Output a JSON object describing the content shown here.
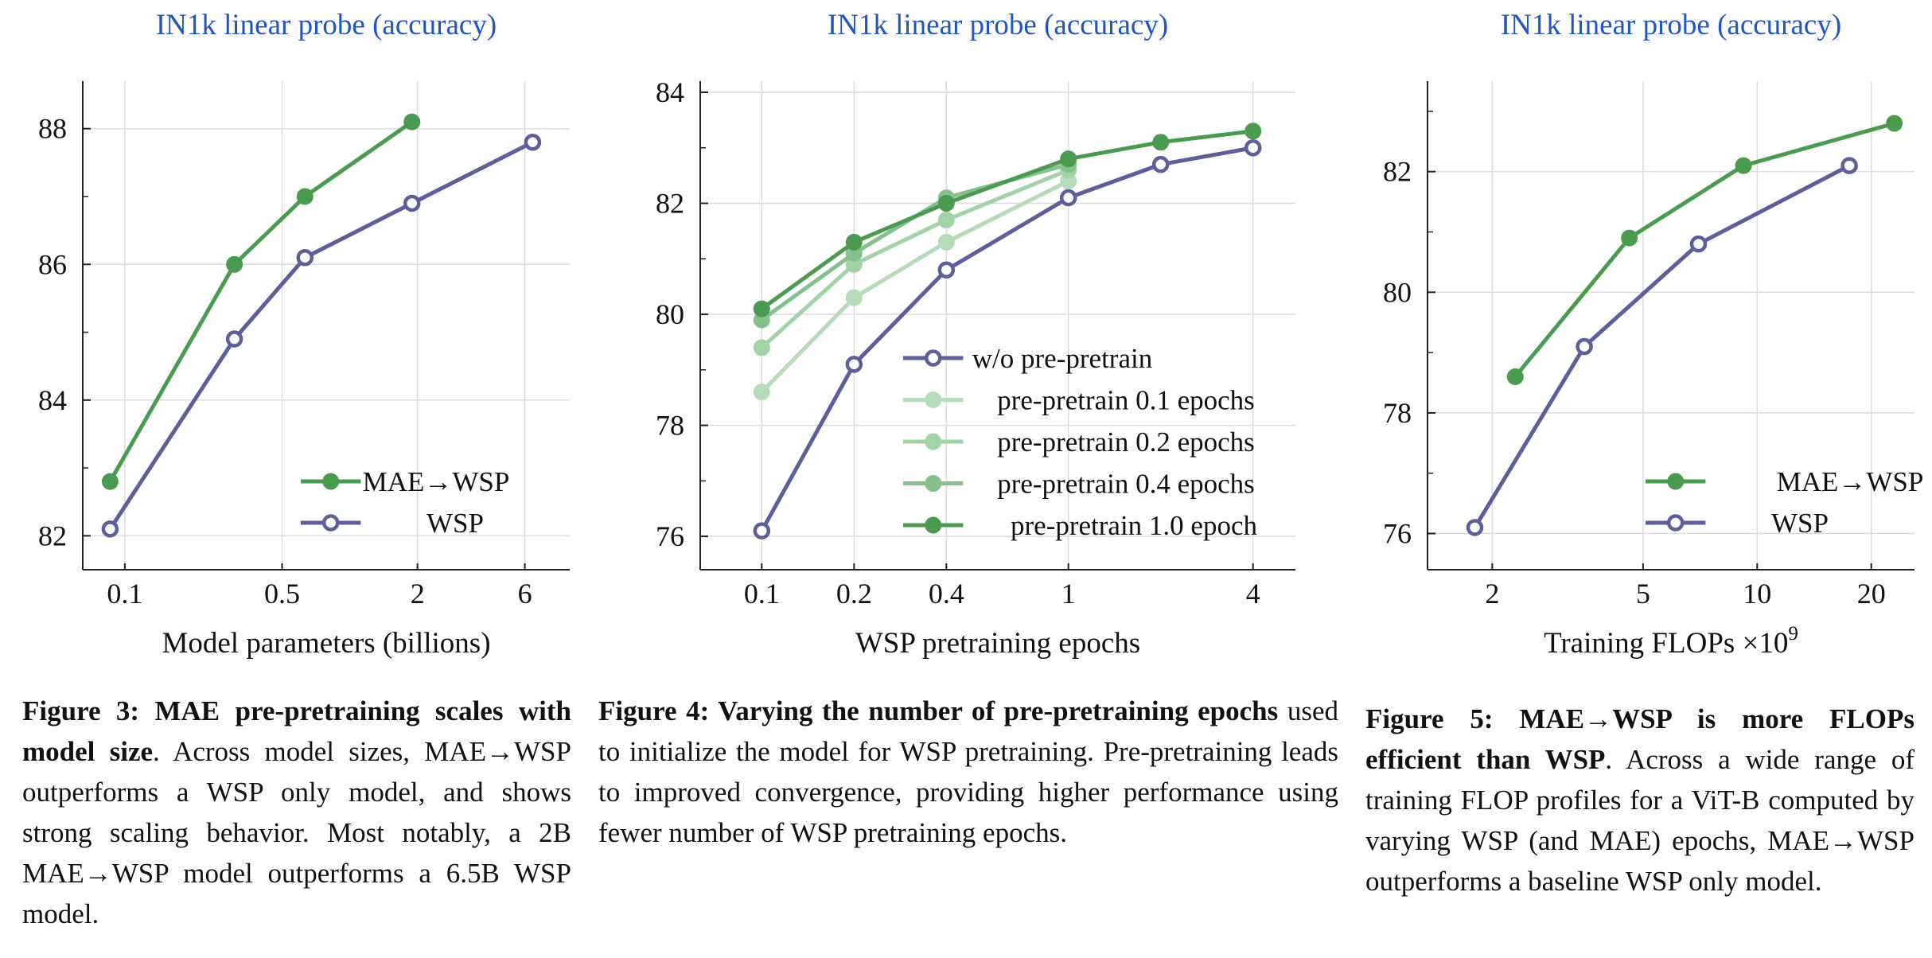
{
  "chart_data": [
    {
      "type": "line",
      "title": "IN1k linear probe (accuracy)",
      "xlabel": "Model parameters (billions)",
      "ylabel": "",
      "xscale": "log",
      "xlim": [
        0.065,
        9.5
      ],
      "ylim": [
        81.5,
        88.7
      ],
      "xticks": [
        0.1,
        0.5,
        2,
        6
      ],
      "xtick_labels": [
        "0.1",
        "0.5",
        "2",
        "6"
      ],
      "yticks": [
        82,
        84,
        86,
        88
      ],
      "ytick_labels": [
        "82",
        "84",
        "86",
        "88"
      ],
      "grid": true,
      "legend_position": "bottom-right",
      "series": [
        {
          "name": "MAE→WSP",
          "color": "#4a9a50",
          "marker": "filled",
          "x": [
            0.086,
            0.307,
            0.632,
            1.89
          ],
          "y": [
            82.8,
            86.0,
            87.0,
            88.1
          ]
        },
        {
          "name": "WSP",
          "color": "#5e5e9a",
          "marker": "open",
          "x": [
            0.086,
            0.307,
            0.632,
            1.89,
            6.5
          ],
          "y": [
            82.1,
            84.9,
            86.1,
            86.9,
            87.8
          ]
        }
      ]
    },
    {
      "type": "line",
      "title": "IN1k linear probe (accuracy)",
      "xlabel": "WSP pretraining epochs",
      "ylabel": "",
      "xscale": "log",
      "xlim": [
        0.063,
        5.5
      ],
      "ylim": [
        75.4,
        84.2
      ],
      "xticks": [
        0.1,
        0.2,
        0.4,
        1,
        4
      ],
      "xtick_labels": [
        "0.1",
        "0.2",
        "0.4",
        "1",
        "4"
      ],
      "yticks": [
        76,
        78,
        80,
        82,
        84
      ],
      "ytick_labels": [
        "76",
        "78",
        "80",
        "82",
        "84"
      ],
      "grid": true,
      "legend_position": "bottom-right",
      "series": [
        {
          "name": "w/o pre-pretrain",
          "color": "#5e5e9a",
          "marker": "open",
          "x": [
            0.1,
            0.2,
            0.4,
            1,
            2,
            4
          ],
          "y": [
            76.1,
            79.1,
            80.8,
            82.1,
            82.7,
            83.0
          ]
        },
        {
          "name": "pre-pretrain 0.1 epochs",
          "color": "#b5dbb8",
          "marker": "filled",
          "x": [
            0.1,
            0.2,
            0.4,
            1
          ],
          "y": [
            78.6,
            80.3,
            81.3,
            82.4
          ]
        },
        {
          "name": "pre-pretrain 0.2 epochs",
          "color": "#a2d3a6",
          "marker": "filled",
          "x": [
            0.1,
            0.2,
            0.4,
            1
          ],
          "y": [
            79.4,
            80.9,
            81.7,
            82.6
          ]
        },
        {
          "name": "pre-pretrain 0.4 epochs",
          "color": "#86c08c",
          "marker": "filled",
          "x": [
            0.1,
            0.2,
            0.4,
            1
          ],
          "y": [
            79.9,
            81.1,
            82.1,
            82.7
          ]
        },
        {
          "name": "pre-pretrain 1.0 epoch",
          "color": "#4a9a50",
          "marker": "filled",
          "x": [
            0.1,
            0.2,
            0.4,
            1,
            2,
            4
          ],
          "y": [
            80.1,
            81.3,
            82.0,
            82.8,
            83.1,
            83.3
          ]
        }
      ]
    },
    {
      "type": "line",
      "title": "IN1k linear probe (accuracy)",
      "xlabel": "Training FLOPs ×10",
      "xlabel_superscript": "9",
      "ylabel": "",
      "xscale": "log",
      "xlim": [
        1.35,
        26
      ],
      "ylim": [
        75.4,
        83.5
      ],
      "xticks": [
        2,
        5,
        10,
        20
      ],
      "xtick_labels": [
        "2",
        "5",
        "10",
        "20"
      ],
      "yticks": [
        76,
        78,
        80,
        82
      ],
      "ytick_labels": [
        "76",
        "78",
        "80",
        "82"
      ],
      "grid": true,
      "legend_position": "bottom-right",
      "series": [
        {
          "name": "MAE→WSP",
          "color": "#4a9a50",
          "marker": "filled",
          "x": [
            2.3,
            4.6,
            9.2,
            23
          ],
          "y": [
            78.6,
            80.9,
            82.1,
            82.8
          ]
        },
        {
          "name": "WSP",
          "color": "#5e5e9a",
          "marker": "open",
          "x": [
            1.8,
            3.5,
            7.0,
            17.5
          ],
          "y": [
            76.1,
            79.1,
            80.8,
            82.1
          ]
        }
      ]
    }
  ],
  "colors": {
    "title": "#2255c4",
    "axis": "#222222",
    "grid": "#dcdcdc"
  },
  "captions": {
    "fig3": {
      "bold": "Figure 3: MAE pre-pretraining scales with model size",
      "text": ". Across model sizes, MAE→WSP outperforms a WSP only model, and shows strong scaling behavior. Most notably, a 2B MAE→WSP model outperforms a 6.5B WSP model."
    },
    "fig4": {
      "bold": "Figure 4: Varying the number of pre-pretraining epochs",
      "text": " used to initialize the model for WSP pretraining. Pre-pretraining leads to improved convergence, providing higher performance using fewer number of WSP pretraining epochs."
    },
    "fig5": {
      "bold": "Figure 5: MAE→WSP is more FLOPs efficient than WSP",
      "text": ". Across a wide range of training FLOP profiles for a ViT-B computed by varying WSP (and MAE) epochs, MAE→WSP outperforms a baseline WSP only model."
    }
  }
}
